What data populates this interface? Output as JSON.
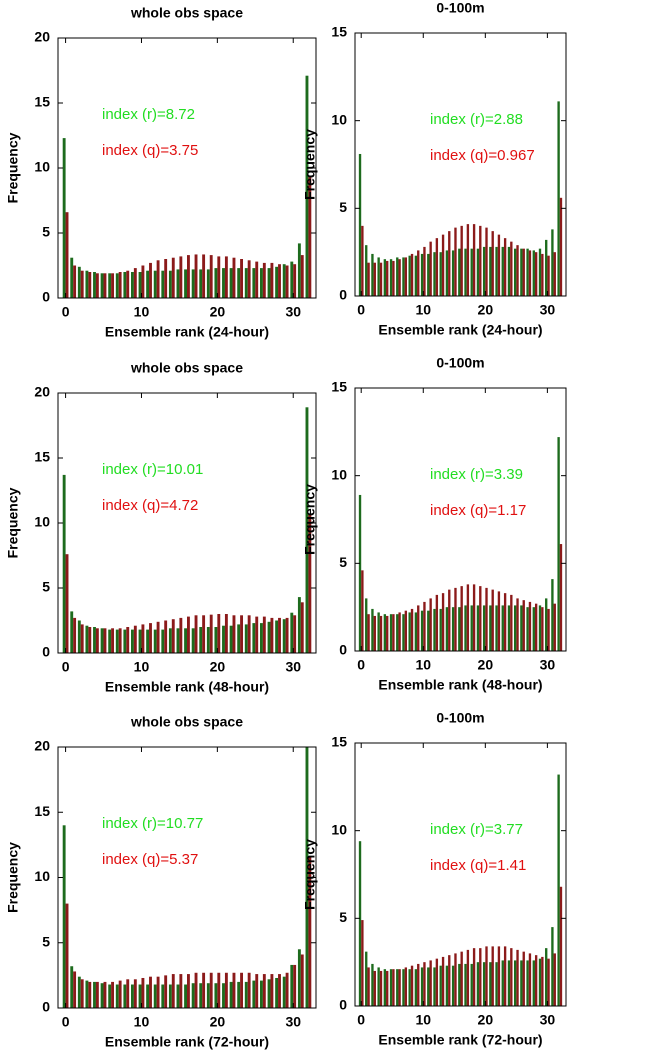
{
  "chart_data": [
    {
      "type": "bar",
      "title": "whole obs space",
      "x_label": "Ensemble rank (24-hour)",
      "y_label": "Frequency",
      "x": [
        0,
        1,
        2,
        3,
        4,
        5,
        6,
        7,
        8,
        9,
        10,
        11,
        12,
        13,
        14,
        15,
        16,
        17,
        18,
        19,
        20,
        21,
        22,
        23,
        24,
        25,
        26,
        27,
        28,
        29,
        30,
        31,
        32
      ],
      "series": [
        {
          "color": "#1d6b1d",
          "values": [
            12.3,
            3.1,
            2.4,
            2.1,
            2.0,
            1.9,
            1.9,
            1.9,
            2.0,
            2.0,
            2.0,
            2.1,
            2.1,
            2.1,
            2.1,
            2.2,
            2.2,
            2.2,
            2.2,
            2.2,
            2.3,
            2.3,
            2.3,
            2.3,
            2.3,
            2.3,
            2.3,
            2.3,
            2.4,
            2.6,
            2.8,
            4.2,
            17.1
          ]
        },
        {
          "color": "#8b1a1a",
          "values": [
            6.6,
            2.5,
            2.1,
            2.0,
            1.9,
            1.9,
            1.9,
            2.0,
            2.1,
            2.3,
            2.5,
            2.7,
            2.9,
            3.0,
            3.1,
            3.2,
            3.3,
            3.35,
            3.35,
            3.3,
            3.2,
            3.2,
            3.1,
            3.0,
            2.9,
            2.8,
            2.7,
            2.7,
            2.6,
            2.5,
            2.6,
            3.3,
            9.3
          ]
        }
      ],
      "annotations": [
        {
          "text": "index (r)=8.72",
          "color": "#22dd22"
        },
        {
          "text": "index (q)=3.75",
          "color": "#e01010"
        }
      ],
      "xlim": [
        -1,
        33
      ],
      "xticks": [
        0,
        10,
        20,
        30
      ],
      "ylim": [
        0,
        20
      ],
      "yticks": [
        0,
        5,
        10,
        15,
        20
      ]
    },
    {
      "type": "bar",
      "title": "0-100m",
      "x_label": "Ensemble rank (24-hour)",
      "y_label": "Frequency",
      "x": [
        0,
        1,
        2,
        3,
        4,
        5,
        6,
        7,
        8,
        9,
        10,
        11,
        12,
        13,
        14,
        15,
        16,
        17,
        18,
        19,
        20,
        21,
        22,
        23,
        24,
        25,
        26,
        27,
        28,
        29,
        30,
        31,
        32
      ],
      "series": [
        {
          "color": "#1d6b1d",
          "values": [
            8.1,
            2.9,
            2.4,
            2.2,
            2.1,
            2.1,
            2.2,
            2.2,
            2.3,
            2.3,
            2.4,
            2.4,
            2.5,
            2.5,
            2.6,
            2.6,
            2.7,
            2.7,
            2.7,
            2.7,
            2.8,
            2.8,
            2.8,
            2.8,
            2.8,
            2.7,
            2.7,
            2.7,
            2.6,
            2.7,
            3.2,
            3.8,
            11.1
          ]
        },
        {
          "color": "#8b1a1a",
          "values": [
            4.0,
            1.9,
            1.9,
            1.9,
            2.0,
            2.0,
            2.1,
            2.2,
            2.4,
            2.6,
            2.8,
            3.1,
            3.3,
            3.5,
            3.7,
            3.9,
            4.0,
            4.1,
            4.1,
            4.0,
            3.9,
            3.7,
            3.5,
            3.3,
            3.1,
            2.9,
            2.7,
            2.6,
            2.5,
            2.4,
            2.3,
            2.5,
            5.6
          ]
        }
      ],
      "annotations": [
        {
          "text": "index (r)=2.88",
          "color": "#22dd22"
        },
        {
          "text": "index (q)=0.967",
          "color": "#e01010"
        }
      ],
      "xlim": [
        -1,
        33
      ],
      "xticks": [
        0,
        10,
        20,
        30
      ],
      "ylim": [
        0,
        15
      ],
      "yticks": [
        0,
        5,
        10,
        15
      ]
    },
    {
      "type": "bar",
      "title": "whole obs space",
      "x_label": "Ensemble rank (48-hour)",
      "y_label": "Frequency",
      "x": [
        0,
        1,
        2,
        3,
        4,
        5,
        6,
        7,
        8,
        9,
        10,
        11,
        12,
        13,
        14,
        15,
        16,
        17,
        18,
        19,
        20,
        21,
        22,
        23,
        24,
        25,
        26,
        27,
        28,
        29,
        30,
        31,
        32
      ],
      "series": [
        {
          "color": "#1d6b1d",
          "values": [
            13.7,
            3.2,
            2.5,
            2.1,
            2.0,
            1.9,
            1.8,
            1.8,
            1.8,
            1.8,
            1.8,
            1.8,
            1.8,
            1.8,
            1.9,
            1.9,
            1.9,
            1.9,
            2.0,
            2.0,
            2.0,
            2.1,
            2.1,
            2.2,
            2.2,
            2.3,
            2.3,
            2.4,
            2.5,
            2.6,
            3.1,
            4.3,
            18.9
          ]
        },
        {
          "color": "#8b1a1a",
          "values": [
            7.6,
            2.7,
            2.2,
            2.0,
            1.9,
            1.9,
            1.9,
            1.9,
            2.0,
            2.1,
            2.2,
            2.3,
            2.4,
            2.5,
            2.6,
            2.7,
            2.8,
            2.9,
            2.9,
            2.95,
            3.0,
            3.0,
            2.9,
            2.9,
            2.9,
            2.8,
            2.8,
            2.7,
            2.7,
            2.7,
            2.9,
            3.9,
            10.7
          ]
        }
      ],
      "annotations": [
        {
          "text": "index (r)=10.01",
          "color": "#22dd22"
        },
        {
          "text": "index (q)=4.72",
          "color": "#e01010"
        }
      ],
      "xlim": [
        -1,
        33
      ],
      "xticks": [
        0,
        10,
        20,
        30
      ],
      "ylim": [
        0,
        20
      ],
      "yticks": [
        0,
        5,
        10,
        15,
        20
      ]
    },
    {
      "type": "bar",
      "title": "0-100m",
      "x_label": "Ensemble rank (48-hour)",
      "y_label": "Frequency",
      "x": [
        0,
        1,
        2,
        3,
        4,
        5,
        6,
        7,
        8,
        9,
        10,
        11,
        12,
        13,
        14,
        15,
        16,
        17,
        18,
        19,
        20,
        21,
        22,
        23,
        24,
        25,
        26,
        27,
        28,
        29,
        30,
        31,
        32
      ],
      "series": [
        {
          "color": "#1d6b1d",
          "values": [
            8.9,
            3.0,
            2.4,
            2.2,
            2.1,
            2.1,
            2.1,
            2.1,
            2.2,
            2.2,
            2.3,
            2.3,
            2.4,
            2.4,
            2.5,
            2.5,
            2.5,
            2.6,
            2.6,
            2.6,
            2.6,
            2.6,
            2.6,
            2.6,
            2.6,
            2.6,
            2.6,
            2.5,
            2.5,
            2.6,
            3.0,
            4.1,
            12.2
          ]
        },
        {
          "color": "#8b1a1a",
          "values": [
            4.6,
            2.1,
            2.0,
            2.0,
            2.0,
            2.1,
            2.2,
            2.3,
            2.4,
            2.6,
            2.8,
            3.0,
            3.2,
            3.3,
            3.5,
            3.6,
            3.7,
            3.8,
            3.8,
            3.7,
            3.6,
            3.5,
            3.4,
            3.3,
            3.2,
            3.0,
            2.9,
            2.8,
            2.7,
            2.5,
            2.4,
            2.7,
            6.1
          ]
        }
      ],
      "annotations": [
        {
          "text": "index (r)=3.39",
          "color": "#22dd22"
        },
        {
          "text": "index (q)=1.17",
          "color": "#e01010"
        }
      ],
      "xlim": [
        -1,
        33
      ],
      "xticks": [
        0,
        10,
        20,
        30
      ],
      "ylim": [
        0,
        15
      ],
      "yticks": [
        0,
        5,
        10,
        15
      ]
    },
    {
      "type": "bar",
      "title": "whole obs space",
      "x_label": "Ensemble rank (72-hour)",
      "y_label": "Frequency",
      "x": [
        0,
        1,
        2,
        3,
        4,
        5,
        6,
        7,
        8,
        9,
        10,
        11,
        12,
        13,
        14,
        15,
        16,
        17,
        18,
        19,
        20,
        21,
        22,
        23,
        24,
        25,
        26,
        27,
        28,
        29,
        30,
        31,
        32
      ],
      "series": [
        {
          "color": "#1d6b1d",
          "values": [
            14.0,
            3.2,
            2.4,
            2.1,
            2.0,
            1.9,
            1.8,
            1.8,
            1.8,
            1.8,
            1.8,
            1.8,
            1.8,
            1.8,
            1.8,
            1.8,
            1.8,
            1.9,
            1.9,
            1.9,
            1.9,
            1.9,
            2.0,
            2.0,
            2.0,
            2.1,
            2.1,
            2.2,
            2.3,
            2.4,
            3.3,
            4.5,
            20.0
          ]
        },
        {
          "color": "#8b1a1a",
          "values": [
            8.0,
            2.8,
            2.2,
            2.0,
            2.0,
            2.0,
            2.0,
            2.1,
            2.2,
            2.2,
            2.3,
            2.4,
            2.4,
            2.5,
            2.6,
            2.6,
            2.6,
            2.7,
            2.7,
            2.7,
            2.7,
            2.7,
            2.7,
            2.7,
            2.7,
            2.6,
            2.6,
            2.6,
            2.6,
            2.7,
            3.3,
            4.1,
            11.6
          ]
        }
      ],
      "annotations": [
        {
          "text": "index (r)=10.77",
          "color": "#22dd22"
        },
        {
          "text": "index (q)=5.37",
          "color": "#e01010"
        }
      ],
      "xlim": [
        -1,
        33
      ],
      "xticks": [
        0,
        10,
        20,
        30
      ],
      "ylim": [
        0,
        20
      ],
      "yticks": [
        0,
        5,
        10,
        15,
        20
      ]
    },
    {
      "type": "bar",
      "title": "0-100m",
      "x_label": "Ensemble rank (72-hour)",
      "y_label": "Frequency",
      "x": [
        0,
        1,
        2,
        3,
        4,
        5,
        6,
        7,
        8,
        9,
        10,
        11,
        12,
        13,
        14,
        15,
        16,
        17,
        18,
        19,
        20,
        21,
        22,
        23,
        24,
        25,
        26,
        27,
        28,
        29,
        30,
        31,
        32
      ],
      "series": [
        {
          "color": "#1d6b1d",
          "values": [
            9.4,
            3.1,
            2.4,
            2.2,
            2.1,
            2.1,
            2.1,
            2.1,
            2.1,
            2.1,
            2.2,
            2.2,
            2.2,
            2.3,
            2.3,
            2.3,
            2.4,
            2.4,
            2.4,
            2.5,
            2.5,
            2.5,
            2.5,
            2.6,
            2.6,
            2.6,
            2.6,
            2.6,
            2.6,
            2.7,
            3.3,
            4.5,
            13.2
          ]
        },
        {
          "color": "#8b1a1a",
          "values": [
            4.9,
            2.2,
            2.0,
            2.0,
            2.0,
            2.1,
            2.1,
            2.2,
            2.3,
            2.4,
            2.5,
            2.6,
            2.7,
            2.8,
            2.9,
            3.0,
            3.1,
            3.2,
            3.3,
            3.3,
            3.4,
            3.4,
            3.4,
            3.4,
            3.3,
            3.2,
            3.1,
            3.0,
            2.9,
            2.8,
            2.7,
            3.0,
            6.8
          ]
        }
      ],
      "annotations": [
        {
          "text": "index (r)=3.77",
          "color": "#22dd22"
        },
        {
          "text": "index (q)=1.41",
          "color": "#e01010"
        }
      ],
      "xlim": [
        -1,
        33
      ],
      "xticks": [
        0,
        10,
        20,
        30
      ],
      "ylim": [
        0,
        15
      ],
      "yticks": [
        0,
        5,
        10,
        15
      ]
    }
  ]
}
